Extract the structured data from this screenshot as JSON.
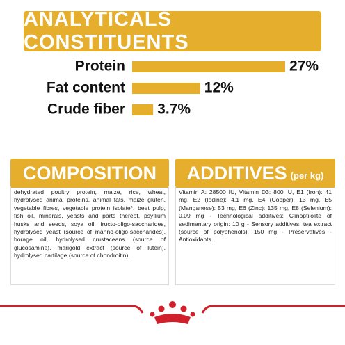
{
  "chart_data": {
    "type": "bar",
    "title": "ANALYTICALS CONSTITUENTS",
    "categories": [
      "Protein",
      "Fat content",
      "Crude fiber"
    ],
    "values": [
      27,
      12,
      3.7
    ],
    "value_labels": [
      "27%",
      "12%",
      "3.7%"
    ],
    "color": "#e6ae2d"
  },
  "composition": {
    "title": "COMPOSITION",
    "text": "dehydrated poultry protein, maize, rice, wheat, hydrolysed animal proteins, animal fats, maize gluten, vegetable fibres, vegetable protein isolate*, beet pulp, fish oil, minerals, yeasts and parts thereof, psyllium husks and seeds, soya oil, fructo-oligo-saccharides, hydrolysed yeast (source of manno-oligo-saccharides), borage oil, hydrolysed crustaceans (source of glucosamine), marigold extract (source of lutein), hydrolysed cartilage (source of chondroitin)."
  },
  "additives": {
    "title": "ADDITIVES",
    "subtitle": "(per kg)",
    "text": "Vitamin A: 28500 IU, Vitamin D3: 800 IU, E1 (Iron): 41 mg, E2 (Iodine): 4.1 mg, E4 (Copper): 13 mg, E5 (Manganese): 53 mg, E6 (Zinc): 135 mg, E8 (Selenium): 0.09 mg - Technological additives: Clinoptilolite of sedimentary origin: 10 g - Sensory additives: tea extract (source of polyphenols): 150 mg - Preservatives - Antioxidants."
  }
}
